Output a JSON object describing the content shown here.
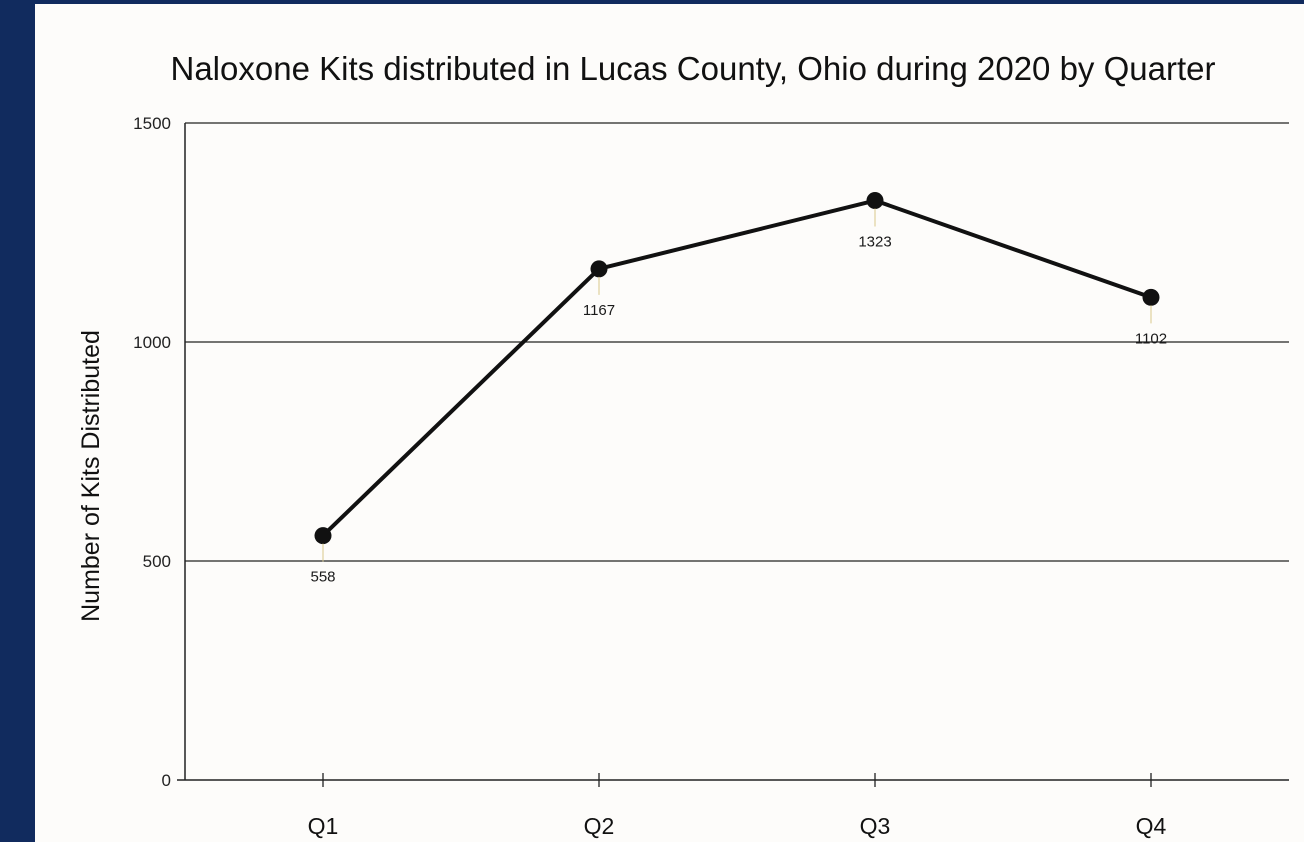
{
  "chart_data": {
    "type": "line",
    "title": "Naloxone Kits distributed in Lucas County, Ohio during 2020 by Quarter",
    "xlabel": "",
    "ylabel": "Number of Kits Distributed",
    "categories": [
      "Q1",
      "Q2",
      "Q3",
      "Q4"
    ],
    "series": [
      {
        "values": [
          558,
          1167,
          1323,
          1102
        ]
      }
    ],
    "data_labels": [
      "558",
      "1167",
      "1323",
      "1102"
    ],
    "ylim": [
      0,
      1500
    ],
    "yticks": [
      0,
      500,
      1000,
      1500
    ],
    "ytick_labels": [
      "0",
      "500",
      "1000",
      "1500"
    ],
    "grid": true,
    "legend": "none",
    "colors": {
      "line": "#111111",
      "grid": "#222222",
      "label_leader": "#d9c98a",
      "background": "#fdfcfa",
      "frame": "#112b5e"
    }
  }
}
